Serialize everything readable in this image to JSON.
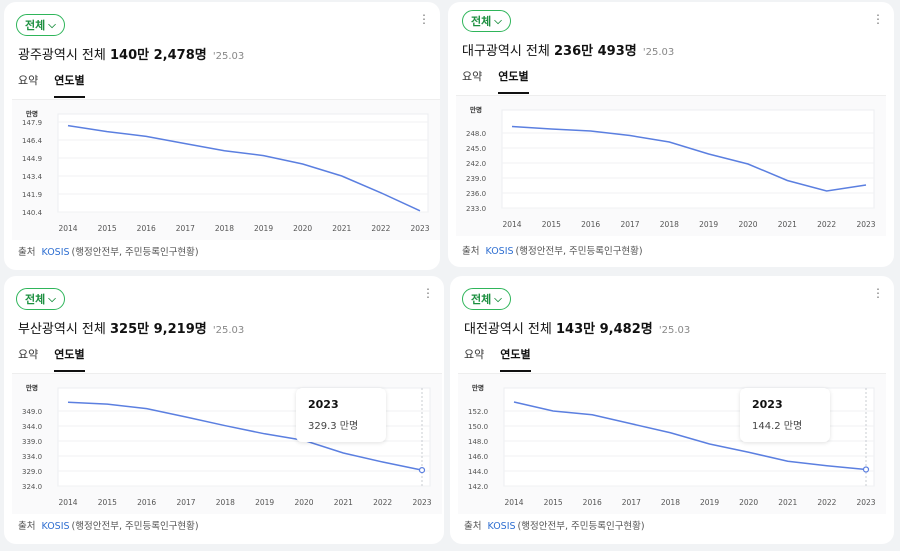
{
  "cards": [
    {
      "chip": "전체",
      "title_region": "광주광역시 전체",
      "title_value": "140만 2,478명",
      "title_date": "'25.03",
      "tabs": [
        "요약",
        "연도별"
      ],
      "source_prefix": "출처",
      "source_link": "KOSIS",
      "source_rest": "(행정안전부, 주민등록인구현황)",
      "chart_data": {
        "type": "line",
        "unit_label": "만명",
        "categories": [
          "2014",
          "2015",
          "2016",
          "2017",
          "2018",
          "2019",
          "2020",
          "2021",
          "2022",
          "2023"
        ],
        "values": [
          147.6,
          147.1,
          146.7,
          146.1,
          145.5,
          145.1,
          144.4,
          143.4,
          142.0,
          140.5
        ],
        "yticks": [
          147.9,
          146.4,
          144.9,
          143.4,
          141.9,
          140.4
        ],
        "ylim": [
          140.4,
          147.9
        ]
      }
    },
    {
      "chip": "전체",
      "title_region": "대구광역시 전체",
      "title_value": "236만 493명",
      "title_date": "'25.03",
      "tabs": [
        "요약",
        "연도별"
      ],
      "source_prefix": "출처",
      "source_link": "KOSIS",
      "source_rest": "(행정안전부, 주민등록인구현황)",
      "chart_data": {
        "type": "line",
        "unit_label": "만명",
        "categories": [
          "2014",
          "2015",
          "2016",
          "2017",
          "2018",
          "2019",
          "2020",
          "2021",
          "2022",
          "2023"
        ],
        "values": [
          249.3,
          248.8,
          248.4,
          247.5,
          246.2,
          243.8,
          241.8,
          238.5,
          236.4,
          237.6
        ],
        "yticks": [
          248.0,
          245.0,
          242.0,
          239.0,
          236.0,
          233.0
        ],
        "ylim": [
          233.0,
          251.0
        ]
      }
    },
    {
      "chip": "전체",
      "title_region": "부산광역시 전체",
      "title_value": "325만 9,219명",
      "title_date": "'25.03",
      "tabs": [
        "요약",
        "연도별"
      ],
      "source_prefix": "출처",
      "source_link": "KOSIS",
      "source_rest": "(행정안전부, 주민등록인구현황)",
      "chart_data": {
        "type": "line",
        "unit_label": "만명",
        "categories": [
          "2014",
          "2015",
          "2016",
          "2017",
          "2018",
          "2019",
          "2020",
          "2021",
          "2022",
          "2023"
        ],
        "values": [
          351.9,
          351.3,
          349.8,
          347.0,
          344.1,
          341.4,
          339.2,
          335.0,
          332.0,
          329.3
        ],
        "yticks": [
          349.0,
          344.0,
          339.0,
          334.0,
          329.0,
          324.0
        ],
        "ylim": [
          324.0,
          354.0
        ],
        "tooltip": {
          "year": "2023",
          "value": "329.3 만명"
        }
      }
    },
    {
      "chip": "전체",
      "title_region": "대전광역시 전체",
      "title_value": "143만 9,482명",
      "title_date": "'25.03",
      "tabs": [
        "요약",
        "연도별"
      ],
      "source_prefix": "출처",
      "source_link": "KOSIS",
      "source_rest": "(행정안전부, 주민등록인구현황)",
      "chart_data": {
        "type": "line",
        "unit_label": "만명",
        "categories": [
          "2014",
          "2015",
          "2016",
          "2017",
          "2018",
          "2019",
          "2020",
          "2021",
          "2022",
          "2023"
        ],
        "values": [
          153.2,
          152.0,
          151.5,
          150.3,
          149.1,
          147.6,
          146.5,
          145.3,
          144.7,
          144.2
        ],
        "yticks": [
          152.0,
          150.0,
          148.0,
          146.0,
          144.0,
          142.0
        ],
        "ylim": [
          142.0,
          154.0
        ],
        "tooltip": {
          "year": "2023",
          "value": "144.2 만명"
        }
      }
    }
  ]
}
